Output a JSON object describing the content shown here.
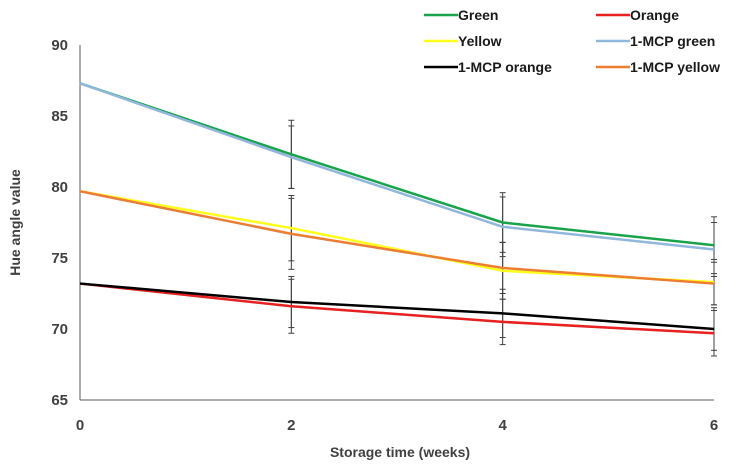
{
  "chart_data": {
    "type": "line",
    "xlabel": "Storage time (weeks)",
    "ylabel": "Hue angle value",
    "x": [
      0,
      2,
      4,
      6
    ],
    "xlim": [
      0,
      6
    ],
    "ylim": [
      65,
      90
    ],
    "xticks": [
      0,
      2,
      4,
      6
    ],
    "yticks": [
      65,
      70,
      75,
      80,
      85,
      90
    ],
    "grid": false,
    "legend_position": "top-right",
    "series": [
      {
        "name": "Green",
        "color": "#1aa34a",
        "values": [
          87.3,
          82.3,
          77.5,
          75.9
        ],
        "errors": [
          0.0,
          2.4,
          2.1,
          2.0
        ]
      },
      {
        "name": "Orange",
        "color": "#e8201f",
        "values": [
          73.2,
          71.6,
          70.5,
          69.7
        ],
        "errors": [
          0.0,
          1.9,
          1.6,
          1.6
        ]
      },
      {
        "name": "Yellow",
        "color": "#ffff1a",
        "values": [
          79.7,
          77.1,
          74.1,
          73.3
        ],
        "errors": [
          0.0,
          2.3,
          2.0,
          1.6
        ]
      },
      {
        "name": "1-MCP green",
        "color": "#8fb8dc",
        "values": [
          87.3,
          82.1,
          77.2,
          75.6
        ],
        "errors": [
          0.0,
          2.2,
          2.1,
          1.9
        ]
      },
      {
        "name": "1-MCP orange",
        "color": "#000000",
        "values": [
          73.2,
          71.9,
          71.1,
          70.0
        ],
        "errors": [
          0.0,
          1.8,
          1.7,
          1.5
        ]
      },
      {
        "name": "1-MCP yellow",
        "color": "#ed7d31",
        "values": [
          79.7,
          76.7,
          74.3,
          73.2
        ],
        "errors": [
          0.0,
          2.5,
          1.8,
          1.5
        ]
      }
    ]
  }
}
